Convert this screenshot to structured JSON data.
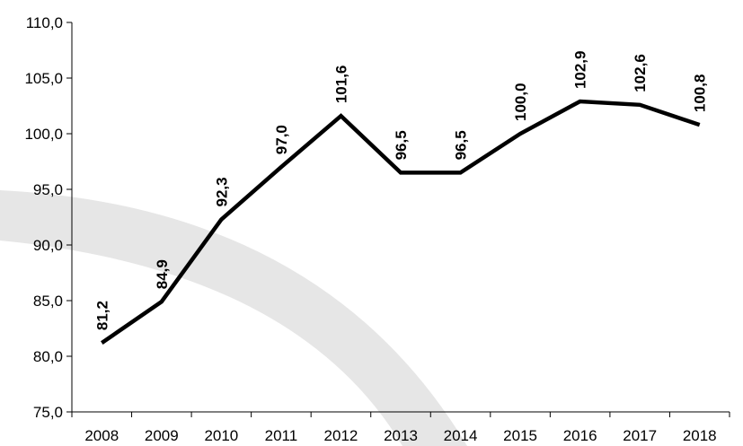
{
  "chart_data": {
    "type": "line",
    "categories": [
      "2008",
      "2009",
      "2010",
      "2011",
      "2012",
      "2013",
      "2014",
      "2015",
      "2016",
      "2017",
      "2018"
    ],
    "series": [
      {
        "values": [
          81.2,
          84.9,
          92.3,
          97.0,
          101.6,
          96.5,
          96.5,
          100.0,
          102.9,
          102.6,
          100.8
        ],
        "data_labels": [
          "81,2",
          "84,9",
          "92,3",
          "97,0",
          "101,6",
          "96,5",
          "96,5",
          "100,0",
          "102,9",
          "102,6",
          "100,8"
        ],
        "color": "#000000"
      }
    ],
    "title": "",
    "xlabel": "",
    "ylabel": "",
    "ylim": [
      75,
      110
    ],
    "y_ticks": [
      75,
      80,
      85,
      90,
      95,
      100,
      105,
      110
    ],
    "y_tick_labels": [
      "75,0",
      "80,0",
      "85,0",
      "90,0",
      "95,0",
      "100,0",
      "105,0",
      "110,0"
    ],
    "grid": false,
    "legend": "none",
    "background_watermark_color": "#e6e6e6"
  }
}
